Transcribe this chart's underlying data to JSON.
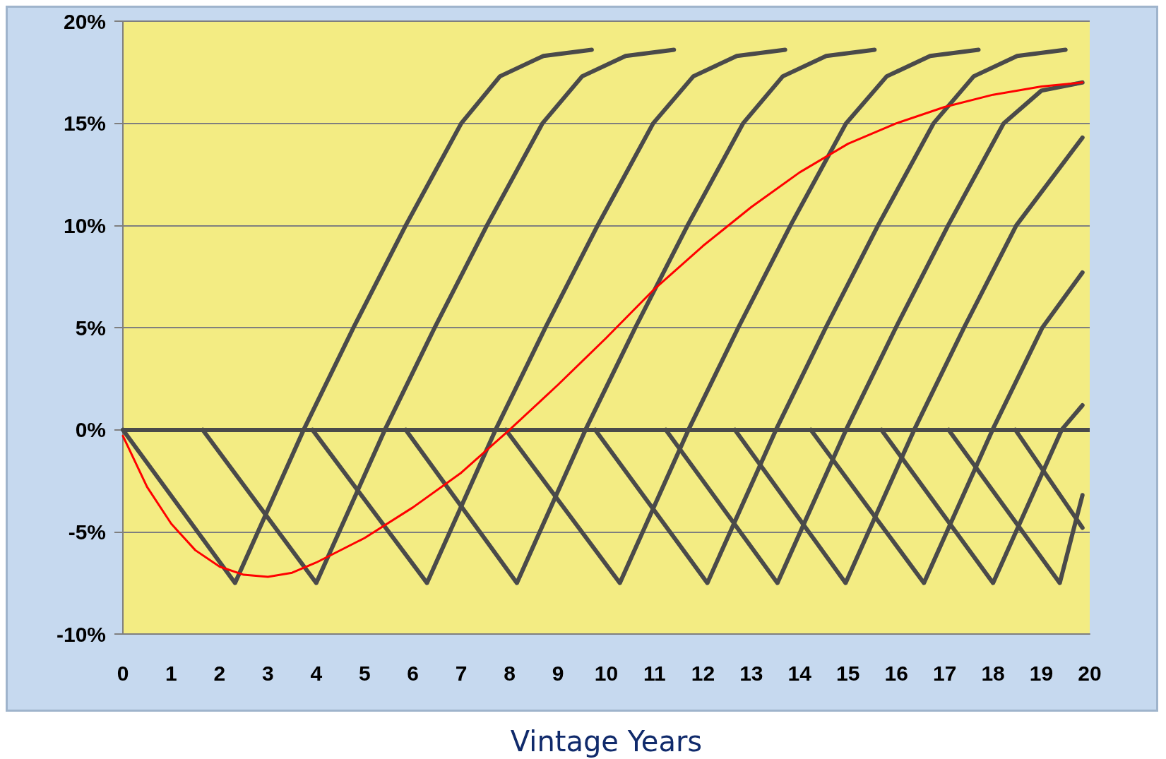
{
  "chart_data": {
    "type": "line",
    "xlabel": "Vintage Years",
    "xlim": [
      0,
      20
    ],
    "xticks": [
      0,
      1,
      2,
      3,
      4,
      5,
      6,
      7,
      8,
      9,
      10,
      11,
      12,
      13,
      14,
      15,
      16,
      17,
      18,
      19,
      20
    ],
    "ylim": [
      -10,
      20
    ],
    "yticks": [
      {
        "value": -10,
        "label": "-10%"
      },
      {
        "value": -5,
        "label": "-5%"
      },
      {
        "value": 0,
        "label": "0%"
      },
      {
        "value": 5,
        "label": "5%"
      },
      {
        "value": 10,
        "label": "10%"
      },
      {
        "value": 15,
        "label": "15%"
      },
      {
        "value": 20,
        "label": "20%"
      }
    ],
    "grid": "y",
    "marker": "none",
    "line_style": "solid",
    "ref_lines": [
      {
        "axis": "y",
        "value": 0,
        "color": "#4a4a4a"
      }
    ],
    "series": [
      {
        "color": "#4a4a4a",
        "x": [
          0,
          2.32,
          3.74,
          4.77,
          5.85,
          7.0,
          7.8,
          8.7,
          9.7
        ],
        "values": [
          0,
          -7.5,
          0,
          5,
          10,
          15,
          17.3,
          18.3,
          18.6
        ]
      },
      {
        "color": "#4a4a4a",
        "x": [
          1.65,
          4.0,
          5.42,
          6.45,
          7.53,
          8.68,
          9.5,
          10.4,
          11.4
        ],
        "values": [
          0,
          -7.5,
          0,
          5,
          10,
          15,
          17.3,
          18.3,
          18.6
        ]
      },
      {
        "color": "#4a4a4a",
        "x": [
          3.92,
          6.29,
          7.71,
          8.74,
          9.82,
          10.97,
          11.8,
          12.7,
          13.7
        ],
        "values": [
          0,
          -7.5,
          0,
          5,
          10,
          15,
          17.3,
          18.3,
          18.6
        ]
      },
      {
        "color": "#4a4a4a",
        "x": [
          5.85,
          8.15,
          9.57,
          10.6,
          11.68,
          12.83,
          13.65,
          14.55,
          15.55
        ],
        "values": [
          0,
          -7.5,
          0,
          5,
          10,
          15,
          17.3,
          18.3,
          18.6
        ]
      },
      {
        "color": "#4a4a4a",
        "x": [
          7.92,
          10.28,
          11.7,
          12.73,
          13.81,
          14.96,
          15.8,
          16.7,
          17.7
        ],
        "values": [
          0,
          -7.5,
          0,
          5,
          10,
          15,
          17.3,
          18.3,
          18.6
        ]
      },
      {
        "color": "#4a4a4a",
        "x": [
          9.77,
          12.09,
          13.51,
          14.54,
          15.62,
          16.77,
          17.6,
          18.5,
          19.5
        ],
        "values": [
          0,
          -7.5,
          0,
          5,
          10,
          15,
          17.3,
          18.3,
          18.6
        ]
      },
      {
        "color": "#4a4a4a",
        "x": [
          11.23,
          13.54,
          14.96,
          15.99,
          17.07,
          18.22,
          19.0,
          19.85
        ],
        "values": [
          0,
          -7.5,
          0,
          5,
          10,
          15,
          16.6,
          17.0
        ]
      },
      {
        "color": "#4a4a4a",
        "x": [
          12.66,
          14.95,
          16.37,
          17.4,
          18.48,
          19.85
        ],
        "values": [
          0,
          -7.5,
          0,
          5,
          10,
          14.3
        ]
      },
      {
        "color": "#4a4a4a",
        "x": [
          14.23,
          16.57,
          17.99,
          19.02,
          19.85
        ],
        "values": [
          0,
          -7.5,
          0,
          5,
          7.7
        ]
      },
      {
        "color": "#4a4a4a",
        "x": [
          15.69,
          18.0,
          19.42,
          19.85
        ],
        "values": [
          0,
          -7.5,
          0,
          1.2
        ]
      },
      {
        "color": "#4a4a4a",
        "x": [
          17.08,
          19.38,
          19.85
        ],
        "values": [
          0,
          -7.5,
          -3.2
        ]
      },
      {
        "color": "#4a4a4a",
        "x": [
          18.46,
          19.85
        ],
        "values": [
          0,
          -4.8
        ]
      },
      {
        "color": "#ff0000",
        "x": [
          0,
          0.5,
          1,
          1.5,
          2,
          2.5,
          3,
          3.5,
          4,
          5,
          6,
          7,
          8,
          9,
          10,
          11,
          12,
          13,
          14,
          15,
          16,
          17,
          18,
          19,
          19.85
        ],
        "values": [
          -0.3,
          -2.8,
          -4.6,
          -5.9,
          -6.7,
          -7.1,
          -7.2,
          -7.0,
          -6.5,
          -5.3,
          -3.8,
          -2.1,
          0,
          2.2,
          4.5,
          6.9,
          9.0,
          10.9,
          12.6,
          14.0,
          15.0,
          15.8,
          16.4,
          16.8,
          17.0
        ]
      }
    ]
  }
}
